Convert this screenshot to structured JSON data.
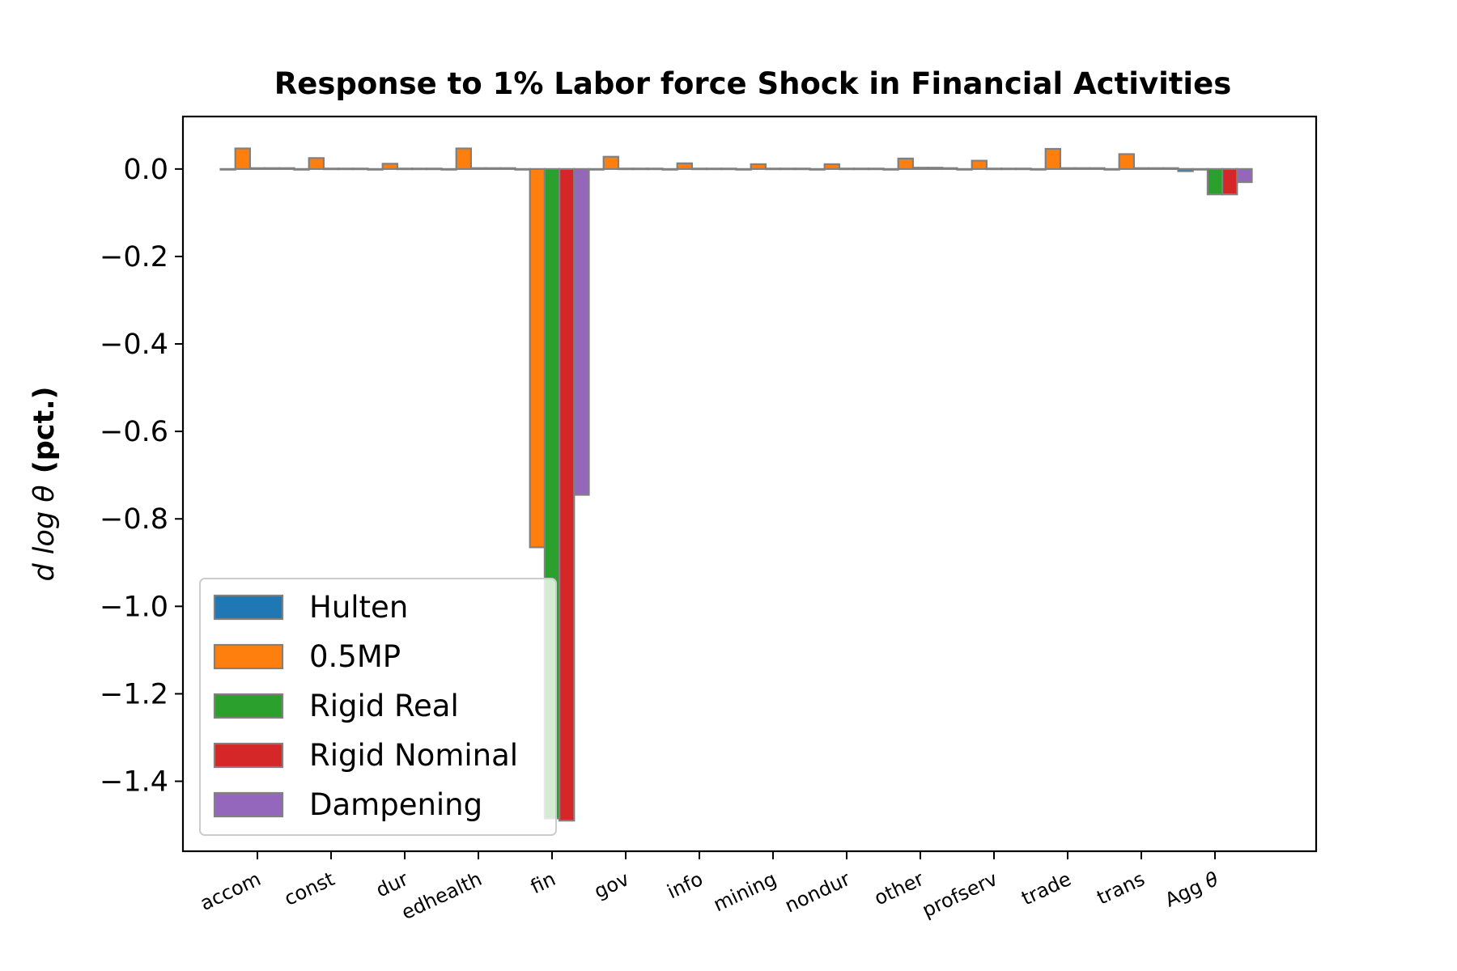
{
  "chart_data": {
    "type": "bar",
    "title": "Response to 1% Labor force Shock in Financial Activities",
    "ylabel_math": "d log θ",
    "ylabel_unit": "(pct.)",
    "xlabel": "",
    "categories": [
      "accom",
      "const",
      "dur",
      "edhealth",
      "fin",
      "gov",
      "info",
      "mining",
      "nondur",
      "other",
      "profserv",
      "trade",
      "trans",
      "Agg θ"
    ],
    "ylim": [
      -1.56,
      0.12
    ],
    "yticks": [
      0.0,
      -0.2,
      -0.4,
      -0.6,
      -0.8,
      -1.0,
      -1.2,
      -1.4
    ],
    "ytick_labels": [
      "0.0",
      "−0.2",
      "−0.4",
      "−0.6",
      "−0.8",
      "−1.0",
      "−1.2",
      "−1.4"
    ],
    "grid": false,
    "legend_position": "lower-left",
    "edge_color": "#808080",
    "series": [
      {
        "name": "Hulten",
        "color": "#1f77b4",
        "values": [
          0,
          0,
          0,
          0,
          0,
          0,
          0,
          0,
          0,
          0,
          0,
          0,
          0,
          -0.005
        ]
      },
      {
        "name": "0.5MP",
        "color": "#ff7f0e",
        "values": [
          0.047,
          0.025,
          0.012,
          0.047,
          -0.865,
          0.028,
          0.013,
          0.011,
          0.011,
          0.024,
          0.019,
          0.046,
          0.034,
          0.0
        ]
      },
      {
        "name": "Rigid Real",
        "color": "#2ca02c",
        "values": [
          0.002,
          0.001,
          0.001,
          0.002,
          -1.485,
          0.001,
          0.001,
          0.001,
          0.001,
          0.003,
          0.001,
          0.002,
          0.002,
          -0.058
        ]
      },
      {
        "name": "Rigid Nominal",
        "color": "#d62728",
        "values": [
          0.002,
          0.001,
          0.001,
          0.002,
          -1.49,
          0.001,
          0.001,
          0.001,
          0.001,
          0.003,
          0.001,
          0.002,
          0.002,
          -0.058
        ]
      },
      {
        "name": "Dampening",
        "color": "#9467bd",
        "values": [
          0.002,
          0.001,
          0.001,
          0.002,
          -0.745,
          0.001,
          0.001,
          0.001,
          0.001,
          0.002,
          0.001,
          0.002,
          0.002,
          -0.03
        ]
      }
    ]
  }
}
